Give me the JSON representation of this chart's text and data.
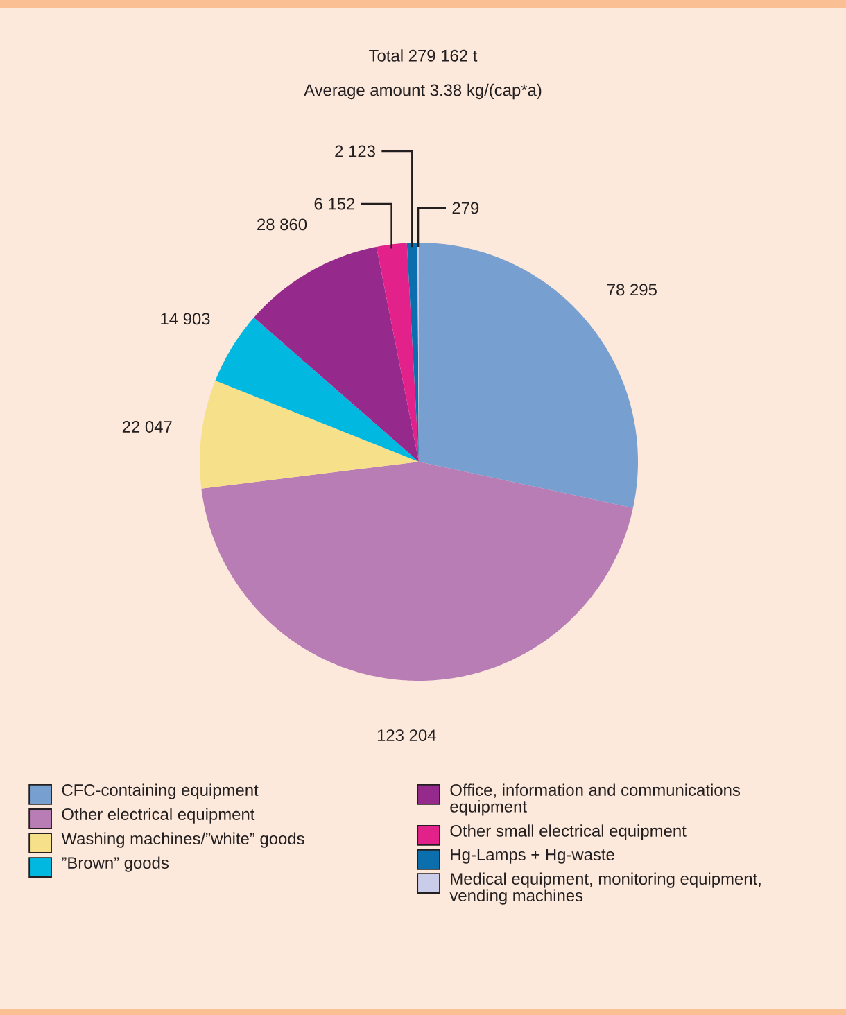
{
  "chart_data": {
    "type": "pie",
    "title": "Total 279 162 t",
    "subtitle": "Average amount 3.38 kg/(cap*a)",
    "categories": [
      "CFC-containing equipment",
      "Other electrical equipment",
      "Washing machines/”white” goods",
      "”Brown” goods",
      "Office, information and communications equipment",
      "Other small electrical equipment",
      "Hg-Lamps + Hg-waste",
      "Medical equipment, monitoring equipment, vending machines"
    ],
    "values": [
      78295,
      123204,
      22047,
      14903,
      28860,
      6152,
      2123,
      279
    ],
    "value_labels": [
      "78 295",
      "123 204",
      "22 047",
      "14 903",
      "28 860",
      "6 152",
      "2 123",
      "279"
    ],
    "colors": [
      "#779fd0",
      "#b87db4",
      "#f7e08a",
      "#00b8e0",
      "#962a8c",
      "#e3218a",
      "#0b6fae",
      "#c9cde9"
    ],
    "legend": "bottom"
  }
}
